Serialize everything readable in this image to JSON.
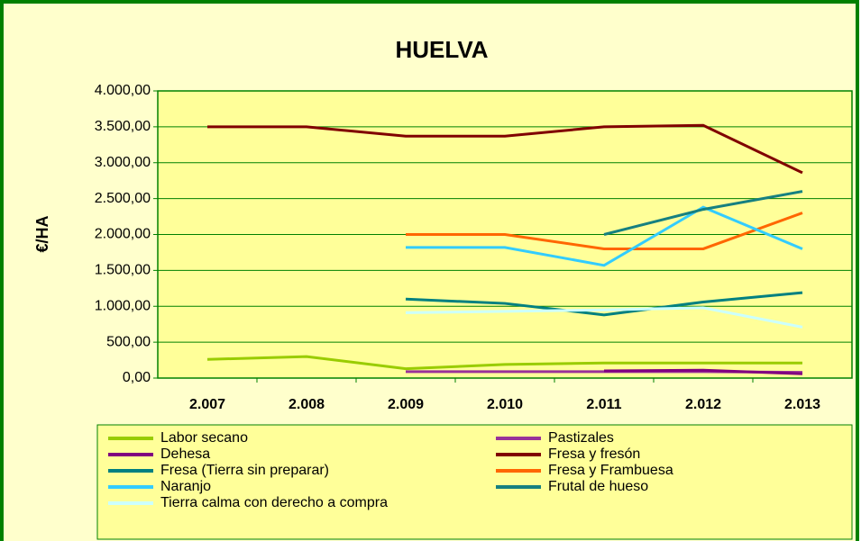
{
  "chart_data": {
    "type": "line",
    "title": "HUELVA",
    "y_label": "€/HA",
    "categories": [
      "2.007",
      "2.008",
      "2.009",
      "2.010",
      "2.011",
      "2.012",
      "2.013"
    ],
    "ylim": [
      0,
      4000
    ],
    "yticks": [
      {
        "value": 0,
        "label": "0,00"
      },
      {
        "value": 500,
        "label": "500,00"
      },
      {
        "value": 1000,
        "label": "1.000,00"
      },
      {
        "value": 1500,
        "label": "1.500,00"
      },
      {
        "value": 2000,
        "label": "2.000,00"
      },
      {
        "value": 2500,
        "label": "2.500,00"
      },
      {
        "value": 3000,
        "label": "3.000,00"
      },
      {
        "value": 3500,
        "label": "3.500,00"
      },
      {
        "value": 4000,
        "label": "4.000,00"
      }
    ],
    "grid": true,
    "series": [
      {
        "name": "Labor secano",
        "color": "#99CC00",
        "values": [
          260,
          300,
          130,
          190,
          210,
          210,
          210
        ]
      },
      {
        "name": "Pastizales",
        "color": "#993399",
        "values": [
          null,
          null,
          90,
          90,
          90,
          90,
          80
        ]
      },
      {
        "name": "Dehesa",
        "color": "#800080",
        "values": [
          null,
          null,
          null,
          null,
          100,
          110,
          60
        ]
      },
      {
        "name": "Fresa y fresón",
        "color": "#800000",
        "values": [
          3500,
          3500,
          3370,
          3370,
          3500,
          3520,
          2860
        ]
      },
      {
        "name": "Fresa (Tierra sin preparar)",
        "color": "#008080",
        "values": [
          null,
          null,
          1100,
          1040,
          880,
          1060,
          1190
        ]
      },
      {
        "name": "Fresa y Frambuesa",
        "color": "#FF6600",
        "values": [
          null,
          null,
          2000,
          2000,
          1800,
          1800,
          2300
        ]
      },
      {
        "name": "Naranjo",
        "color": "#33CCFF",
        "values": [
          null,
          null,
          1820,
          1820,
          1570,
          2380,
          1800
        ]
      },
      {
        "name": "Frutal de hueso",
        "color": "#168080",
        "values": [
          null,
          null,
          null,
          null,
          2000,
          2350,
          2600
        ]
      },
      {
        "name": "Tierra calma con derecho a compra",
        "color": "#CCFFFF",
        "values": [
          null,
          null,
          910,
          930,
          950,
          980,
          710
        ]
      }
    ]
  }
}
